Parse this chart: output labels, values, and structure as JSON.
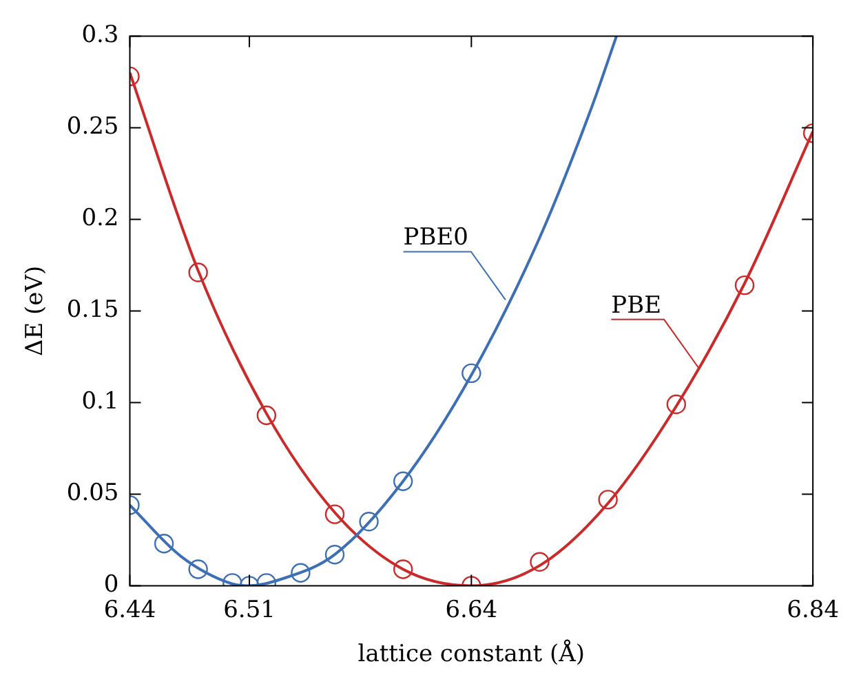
{
  "chart_data": {
    "type": "scatter",
    "xlabel": "lattice constant (Å)",
    "ylabel": "ΔE (eV)",
    "xlim": [
      6.44,
      6.84
    ],
    "xticks": [
      6.44,
      6.51,
      6.64,
      6.84
    ],
    "ylim": [
      0,
      0.3
    ],
    "yticks": [
      0,
      0.05,
      0.1,
      0.15,
      0.2,
      0.25,
      0.3
    ],
    "grid": false,
    "legend": false,
    "marker": "circle",
    "series": [
      {
        "type": "line",
        "marker": "none",
        "color": "#3d6fb4",
        "x": [
          6.44,
          6.47,
          6.5,
          6.51,
          6.53,
          6.56,
          6.6,
          6.64,
          6.68,
          6.71,
          6.725
        ],
        "values": [
          0.044,
          0.016,
          0.001,
          0.0,
          0.004,
          0.017,
          0.057,
          0.115,
          0.19,
          0.26,
          0.3
        ]
      },
      {
        "color": "#3d6fb4",
        "x": [
          6.44,
          6.46,
          6.48,
          6.5,
          6.51,
          6.52,
          6.54,
          6.56,
          6.58,
          6.6,
          6.64
        ],
        "values": [
          0.044,
          0.023,
          0.009,
          0.0015,
          0.0,
          0.0015,
          0.007,
          0.017,
          0.035,
          0.057,
          0.116
        ]
      },
      {
        "type": "line",
        "marker": "none",
        "color": "#cc2a2a",
        "x": [
          6.44,
          6.48,
          6.52,
          6.56,
          6.6,
          6.64,
          6.68,
          6.72,
          6.76,
          6.8,
          6.84
        ],
        "values": [
          0.28,
          0.172,
          0.094,
          0.04,
          0.009,
          0.0,
          0.011,
          0.045,
          0.098,
          0.165,
          0.248
        ]
      },
      {
        "color": "#cc2a2a",
        "x": [
          6.44,
          6.48,
          6.52,
          6.56,
          6.6,
          6.64,
          6.68,
          6.72,
          6.76,
          6.8,
          6.84
        ],
        "values": [
          0.278,
          0.171,
          0.093,
          0.039,
          0.009,
          0.0,
          0.013,
          0.047,
          0.099,
          0.164,
          0.247
        ]
      }
    ],
    "annotations": [
      {
        "text": "PBE0",
        "x": 6.66,
        "y": 0.156
      },
      {
        "text": "PBE",
        "x": 6.773,
        "y": 0.119
      }
    ]
  }
}
